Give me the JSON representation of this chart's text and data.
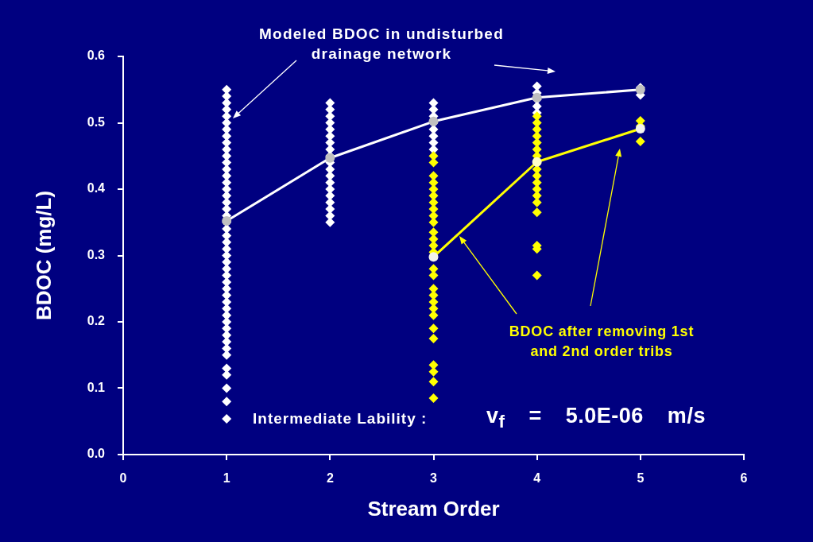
{
  "chart_data": {
    "type": "scatter",
    "xlabel": "Stream Order",
    "ylabel": "BDOC (mg/L)",
    "xlim": [
      0,
      6
    ],
    "xticks": [
      0,
      1,
      2,
      3,
      4,
      5,
      6
    ],
    "ylim": [
      0,
      0.6
    ],
    "yticks": [
      {
        "value": 0,
        "label": "0.0"
      },
      0.1,
      0.2,
      0.3,
      0.4,
      0.5,
      0.6
    ],
    "annotations": [
      "Intermediate Lability :",
      "v$_{f}$ = 5.0E-06 m/s"
    ],
    "series": [
      {
        "type": "scatter",
        "color": "#ffffff",
        "marker": "diamond",
        "x": [
          1,
          1,
          1,
          1,
          1,
          1,
          1,
          1,
          1,
          1,
          1,
          1,
          1,
          1,
          1,
          1,
          1,
          1,
          1,
          1,
          1,
          1,
          1,
          1,
          1,
          1,
          1,
          1,
          1,
          1,
          1,
          1,
          1,
          1,
          1,
          1,
          1,
          1,
          1,
          1,
          1,
          1,
          1,
          1,
          1,
          1,
          2,
          2,
          2,
          2,
          2,
          2,
          2,
          2,
          2,
          2,
          2,
          2,
          2,
          2,
          2,
          2,
          2,
          2,
          2,
          3,
          3,
          3,
          3,
          3,
          3,
          3,
          3,
          4,
          4,
          4,
          4,
          4,
          5,
          5
        ],
        "values": [
          0.55,
          0.54,
          0.53,
          0.52,
          0.51,
          0.5,
          0.49,
          0.48,
          0.47,
          0.46,
          0.45,
          0.44,
          0.43,
          0.42,
          0.41,
          0.4,
          0.39,
          0.38,
          0.37,
          0.36,
          0.35,
          0.34,
          0.33,
          0.32,
          0.31,
          0.3,
          0.29,
          0.28,
          0.27,
          0.26,
          0.25,
          0.24,
          0.23,
          0.22,
          0.21,
          0.2,
          0.19,
          0.18,
          0.17,
          0.16,
          0.15,
          0.13,
          0.12,
          0.1,
          0.08,
          0.054,
          0.53,
          0.52,
          0.51,
          0.5,
          0.49,
          0.48,
          0.47,
          0.46,
          0.45,
          0.44,
          0.43,
          0.42,
          0.41,
          0.4,
          0.39,
          0.38,
          0.37,
          0.36,
          0.35,
          0.53,
          0.52,
          0.51,
          0.5,
          0.49,
          0.48,
          0.47,
          0.46,
          0.555,
          0.545,
          0.535,
          0.525,
          0.515,
          0.553,
          0.542
        ]
      },
      {
        "type": "scatter",
        "color": "#ffff00",
        "marker": "diamond",
        "x": [
          3,
          3,
          3,
          3,
          3,
          3,
          3,
          3,
          3,
          3,
          3,
          3,
          3,
          3,
          3,
          3,
          3,
          3,
          3,
          3,
          3,
          3,
          3,
          3,
          3,
          3,
          3,
          4,
          4,
          4,
          4,
          4,
          4,
          4,
          4,
          4,
          4,
          4,
          4,
          4,
          4,
          4,
          4,
          4,
          5,
          5,
          5
        ],
        "values": [
          0.45,
          0.44,
          0.42,
          0.41,
          0.4,
          0.39,
          0.38,
          0.37,
          0.36,
          0.35,
          0.335,
          0.325,
          0.315,
          0.305,
          0.28,
          0.27,
          0.25,
          0.24,
          0.23,
          0.22,
          0.21,
          0.19,
          0.175,
          0.135,
          0.125,
          0.11,
          0.085,
          0.51,
          0.5,
          0.49,
          0.48,
          0.47,
          0.46,
          0.45,
          0.43,
          0.42,
          0.41,
          0.4,
          0.39,
          0.38,
          0.365,
          0.315,
          0.31,
          0.27,
          0.503,
          0.495,
          0.472
        ]
      },
      {
        "type": "line",
        "name": "Modeled BDOC in undisturbed drainage network",
        "color": "#ffffff",
        "colors": [
          "#c0c0c0",
          "#c0c0c0",
          "#c0c0c0",
          "#c0c0c0",
          "#c0c0c0"
        ],
        "marker": "circle",
        "x": [
          1,
          2,
          3,
          4,
          5
        ],
        "values": [
          0.352,
          0.447,
          0.502,
          0.538,
          0.55
        ]
      },
      {
        "type": "line",
        "name": "BDOC after removing 1st and 2nd order tribs",
        "color": "#ffff00",
        "colors": [
          "#f4f4ee",
          "#ffffc8",
          "#f4f4ee"
        ],
        "marker": "circle",
        "x": [
          3,
          4,
          5
        ],
        "values": [
          0.298,
          0.441,
          0.491
        ]
      }
    ]
  }
}
